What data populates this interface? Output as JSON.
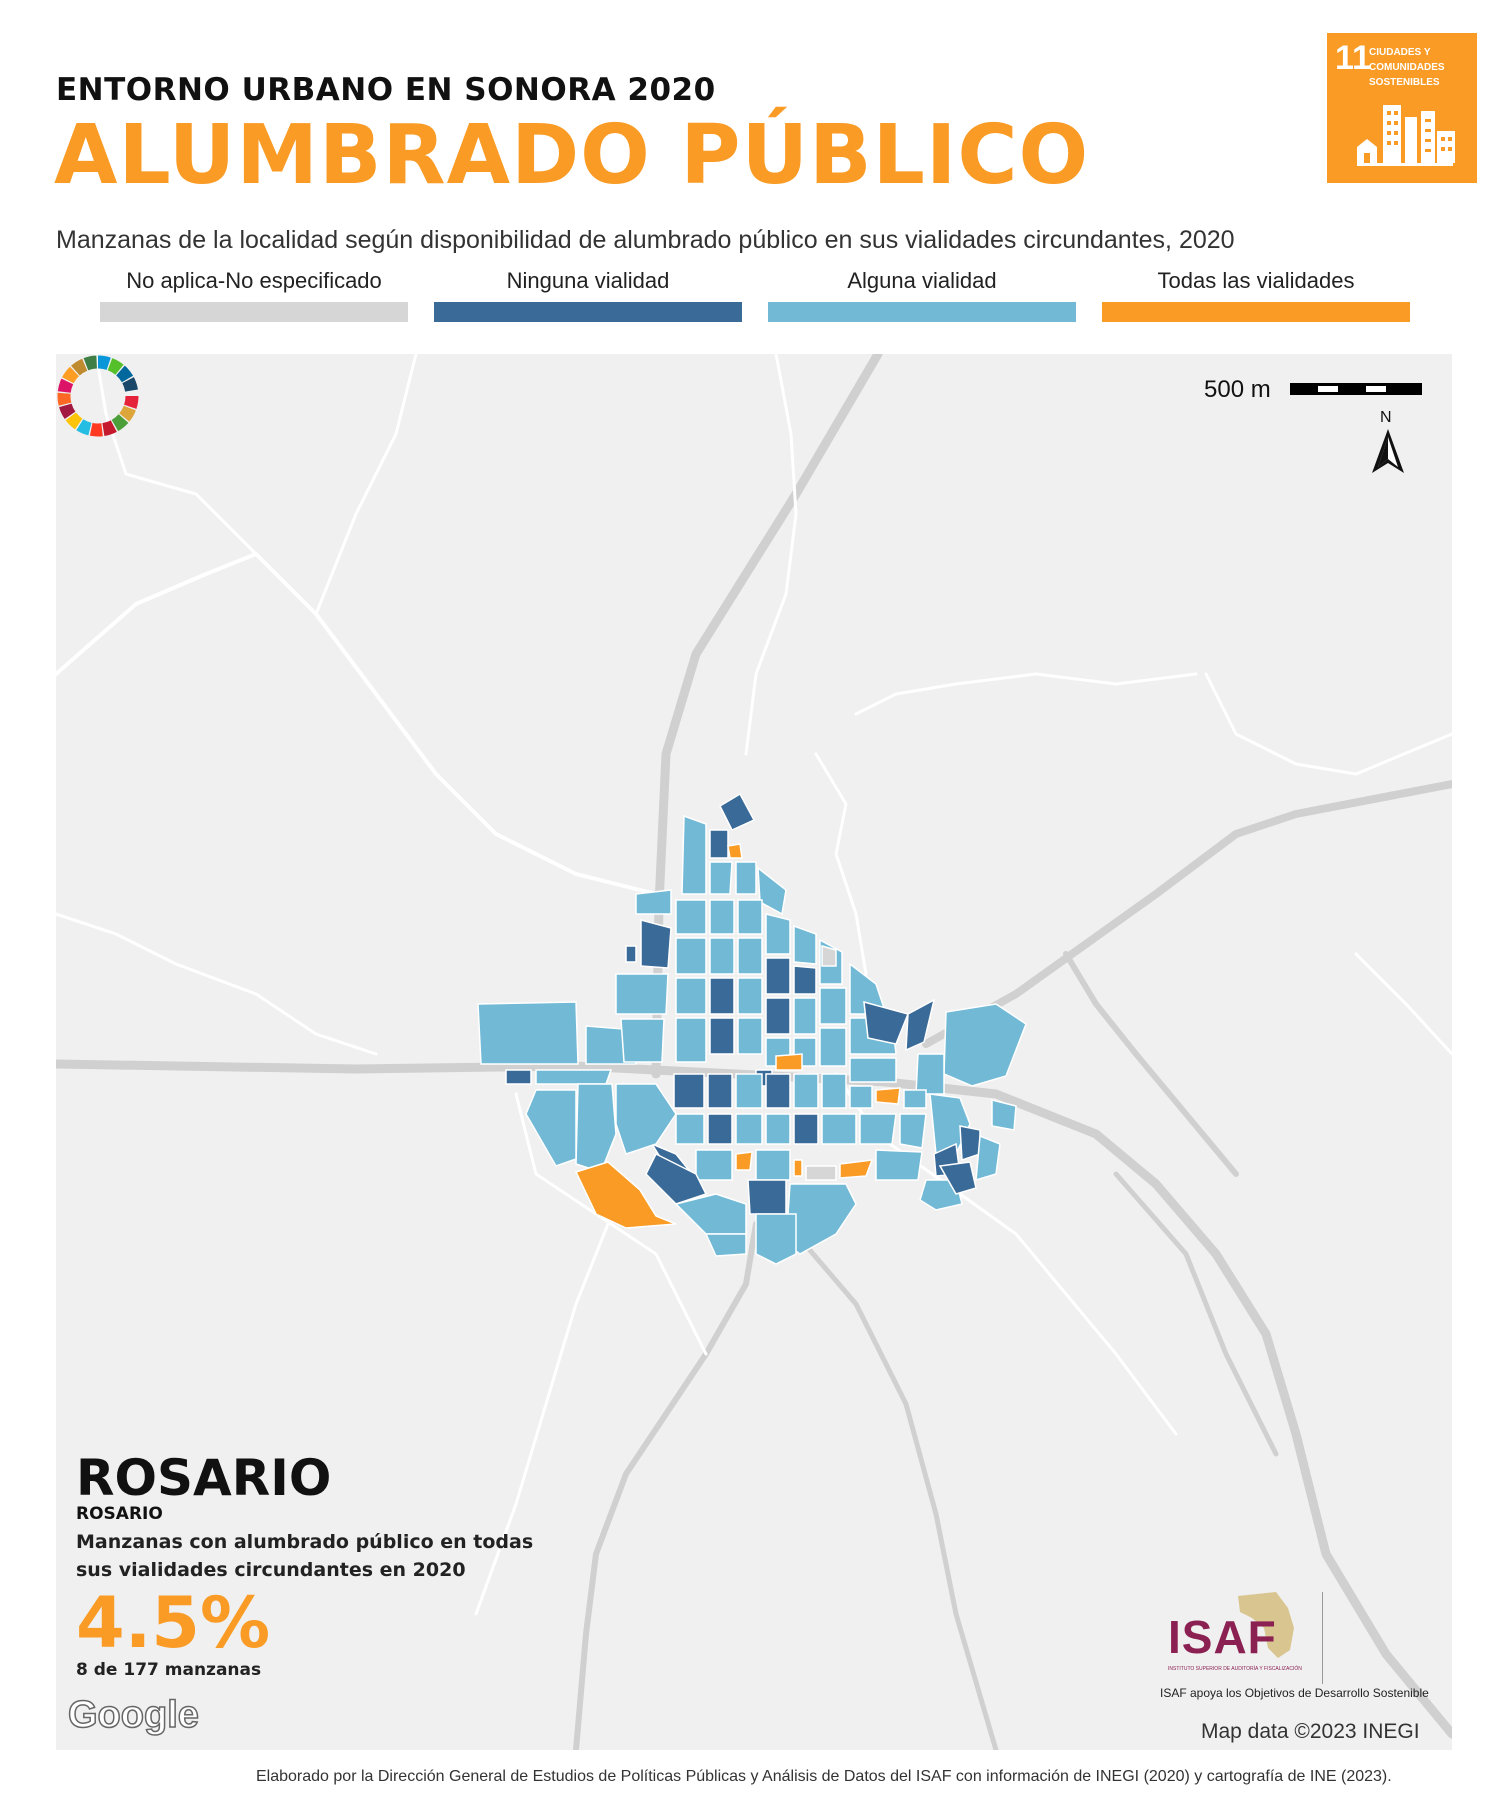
{
  "header": {
    "subtitle_top": "ENTORNO URBANO EN SONORA 2020",
    "title": "ALUMBRADO PÚBLICO"
  },
  "ods_badge": {
    "number": "11",
    "text": "CIUDADES Y COMUNIDADES SOSTENIBLES",
    "color": "#F99B25",
    "icon": "city-buildings-icon"
  },
  "description": "Manzanas de la localidad según disponibilidad de alumbrado público en sus vialidades circundantes, 2020",
  "legend": [
    {
      "label": "No aplica-No especificado",
      "color": "#D6D6D6"
    },
    {
      "label": "Ninguna vialidad",
      "color": "#3A6A98"
    },
    {
      "label": "Alguna vialidad",
      "color": "#72B9D6"
    },
    {
      "label": "Todas las vialidades",
      "color": "#F99B25"
    }
  ],
  "map": {
    "scale_label": "500 m",
    "north_label": "N",
    "google_label": "Google",
    "map_data_credit": "Map data ©2023 INEGI"
  },
  "locality": {
    "name": "ROSARIO",
    "municipality": "ROSARIO",
    "indicator_label": "Manzanas con alumbrado público en todas sus vialidades circundantes en 2020",
    "percentage": "4.5%",
    "count_text": "8 de 177 manzanas"
  },
  "logos": {
    "isaf_text": "ISAF",
    "isaf_subtext": "INSTITUTO SUPERIOR DE AUDITORÍA Y FISCALIZACIÓN",
    "caption": "ISAF apoya los Objetivos de Desarrollo Sostenible"
  },
  "footer": "Elaborado por la Dirección General de Estudios de Políticas Públicas y Análisis de Datos del ISAF con información de INEGI (2020) y cartografía de INE (2023)."
}
